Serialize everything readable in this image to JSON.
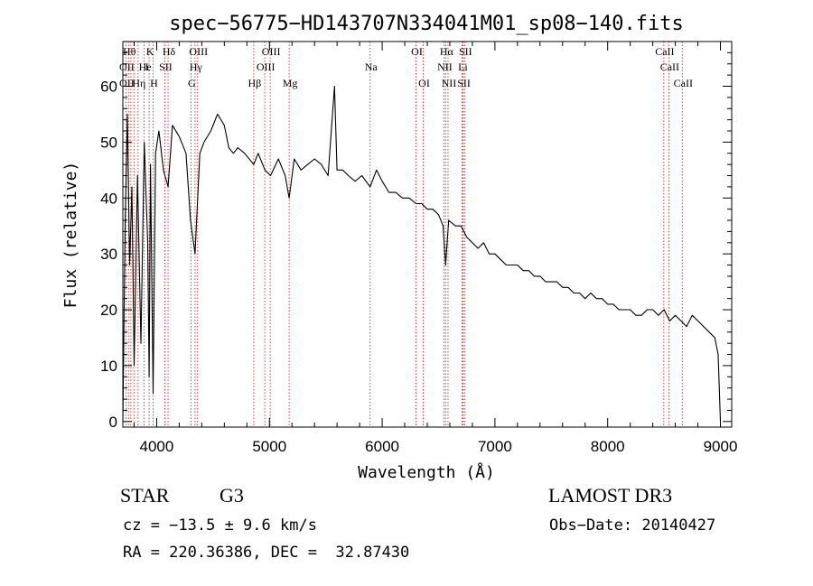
{
  "chart_data": {
    "type": "line",
    "title": "spec−56775−HD143707N334041M01_sp08−140.fits",
    "xlabel": "Wavelength (Å)",
    "ylabel": "Flux (relative)",
    "xlim": [
      3700,
      9100
    ],
    "ylim": [
      -1,
      68
    ],
    "x_ticks": [
      4000,
      5000,
      6000,
      7000,
      8000,
      9000
    ],
    "y_ticks": [
      0,
      10,
      20,
      30,
      40,
      50,
      60
    ],
    "series": [
      {
        "name": "flux",
        "color": "#000000",
        "x": [
          3700,
          3720,
          3740,
          3760,
          3780,
          3800,
          3830,
          3860,
          3890,
          3920,
          3933,
          3945,
          3968,
          3990,
          4020,
          4060,
          4101,
          4140,
          4200,
          4260,
          4300,
          4340,
          4383,
          4420,
          4480,
          4540,
          4600,
          4640,
          4680,
          4720,
          4780,
          4861,
          4900,
          4960,
          5010,
          5080,
          5140,
          5175,
          5220,
          5280,
          5340,
          5400,
          5460,
          5520,
          5577,
          5600,
          5650,
          5700,
          5760,
          5820,
          5893,
          5950,
          6000,
          6060,
          6120,
          6180,
          6240,
          6300,
          6350,
          6400,
          6450,
          6500,
          6540,
          6563,
          6590,
          6650,
          6700,
          6750,
          6800,
          6850,
          6900,
          6950,
          7000,
          7050,
          7100,
          7150,
          7200,
          7250,
          7300,
          7350,
          7400,
          7450,
          7500,
          7550,
          7600,
          7650,
          7700,
          7750,
          7800,
          7850,
          7900,
          7950,
          8000,
          8050,
          8100,
          8150,
          8200,
          8250,
          8300,
          8350,
          8400,
          8450,
          8500,
          8550,
          8600,
          8650,
          8700,
          8750,
          8800,
          8850,
          8900,
          8950,
          8980,
          9000
        ],
        "values": [
          0,
          35,
          55,
          28,
          42,
          10,
          44,
          14,
          50,
          32,
          8,
          46,
          5,
          48,
          52,
          45,
          42,
          53,
          51,
          48,
          36,
          30,
          48,
          50,
          52,
          55,
          53,
          49,
          48,
          49,
          48,
          46,
          48,
          45,
          44,
          47,
          44,
          40,
          47,
          45,
          46,
          47,
          46,
          44,
          60,
          45,
          45,
          44,
          43,
          44,
          42,
          45,
          43,
          41,
          41,
          40,
          40,
          39,
          39,
          38,
          38,
          37,
          35,
          28,
          36,
          35,
          35,
          33,
          32,
          31,
          32,
          30,
          30,
          29,
          28,
          28,
          28,
          27,
          27,
          26,
          26,
          25,
          25,
          25,
          24,
          24,
          23,
          23,
          22,
          23,
          22,
          22,
          21,
          21,
          20,
          20,
          20,
          19,
          19,
          20,
          20,
          19,
          20,
          18,
          19,
          18,
          17,
          19,
          18,
          17,
          16,
          15,
          12,
          0
        ]
      }
    ],
    "lines": [
      {
        "wavelength": 3727,
        "labels": [
          "OII"
        ]
      },
      {
        "wavelength": 3750,
        "labels": [
          "Hθ"
        ]
      },
      {
        "wavelength": 3771,
        "labels": [
          "Hι"
        ]
      },
      {
        "wavelength": 3798,
        "labels": [
          "Hη"
        ]
      },
      {
        "wavelength": 3835,
        "labels": [
          "Hη"
        ]
      },
      {
        "wavelength": 3889,
        "labels": [
          "HeI"
        ]
      },
      {
        "wavelength": 3933,
        "labels": [
          "K"
        ]
      },
      {
        "wavelength": 3968,
        "labels": [
          "H"
        ]
      },
      {
        "wavelength": 4072,
        "labels": [
          "SII"
        ]
      },
      {
        "wavelength": 4101,
        "labels": [
          "Hδ"
        ]
      },
      {
        "wavelength": 4304,
        "labels": [
          "G"
        ]
      },
      {
        "wavelength": 4340,
        "labels": [
          "Hγ"
        ]
      },
      {
        "wavelength": 4363,
        "labels": [
          "OIII"
        ]
      },
      {
        "wavelength": 4861,
        "labels": [
          "Hβ"
        ]
      },
      {
        "wavelength": 4959,
        "labels": [
          "OIII"
        ]
      },
      {
        "wavelength": 5007,
        "labels": [
          "OIII"
        ]
      },
      {
        "wavelength": 5175,
        "labels": [
          "Mg"
        ]
      },
      {
        "wavelength": 5893,
        "labels": [
          "Na"
        ]
      },
      {
        "wavelength": 6300,
        "labels": [
          "OI"
        ]
      },
      {
        "wavelength": 6364,
        "labels": [
          "OI"
        ]
      },
      {
        "wavelength": 6548,
        "labels": [
          "NII"
        ]
      },
      {
        "wavelength": 6563,
        "labels": [
          "Hα"
        ]
      },
      {
        "wavelength": 6584,
        "labels": [
          "NII"
        ]
      },
      {
        "wavelength": 6708,
        "labels": [
          "Li"
        ]
      },
      {
        "wavelength": 6717,
        "labels": [
          "SII"
        ]
      },
      {
        "wavelength": 6731,
        "labels": [
          "SII"
        ]
      },
      {
        "wavelength": 8498,
        "labels": [
          "CaII"
        ]
      },
      {
        "wavelength": 8542,
        "labels": [
          "CaII"
        ]
      },
      {
        "wavelength": 8662,
        "labels": [
          "CaII"
        ]
      }
    ],
    "line_label_rows": [
      [
        {
          "text": "Hθ",
          "wavelength": 3750
        },
        {
          "text": "K",
          "wavelength": 3933
        },
        {
          "text": "Hδ",
          "wavelength": 4101
        },
        {
          "text": "OIII",
          "wavelength": 4363
        },
        {
          "text": "OIII",
          "wavelength": 5007
        },
        {
          "text": "OI",
          "wavelength": 6300
        },
        {
          "text": "Hα",
          "wavelength": 6563
        },
        {
          "text": "SII",
          "wavelength": 6731
        },
        {
          "text": "CaII",
          "wavelength": 8498
        }
      ],
      [
        {
          "text": "OII",
          "wavelength": 3727
        },
        {
          "text": "He",
          "wavelength": 3889
        },
        {
          "text": "I",
          "wavelength": 3905
        },
        {
          "text": "SII",
          "wavelength": 4072
        },
        {
          "text": "Hγ",
          "wavelength": 4340
        },
        {
          "text": "OIII",
          "wavelength": 4959
        },
        {
          "text": "Na",
          "wavelength": 5893
        },
        {
          "text": "NII",
          "wavelength": 6548
        },
        {
          "text": "Li",
          "wavelength": 6708
        },
        {
          "text": "CaII",
          "wavelength": 8542
        }
      ],
      [
        {
          "text": "OII",
          "wavelength": 3727
        },
        {
          "text": "Hη",
          "wavelength": 3835
        },
        {
          "text": "H",
          "wavelength": 3968
        },
        {
          "text": "G",
          "wavelength": 4304
        },
        {
          "text": "Hβ",
          "wavelength": 4861
        },
        {
          "text": "Mg",
          "wavelength": 5175
        },
        {
          "text": "OI",
          "wavelength": 6364
        },
        {
          "text": "NII",
          "wavelength": 6584
        },
        {
          "text": "SII",
          "wavelength": 6717
        },
        {
          "text": "CaII",
          "wavelength": 8662
        }
      ]
    ]
  },
  "info": {
    "object_class": "STAR",
    "subclass": "G3",
    "survey": "LAMOST DR3",
    "redshift": "cz = −13.5 ± 9.6 km/s",
    "obs_date": "Obs−Date: 20140427",
    "coords": "RA = 220.36386, DEC =  32.87430"
  }
}
